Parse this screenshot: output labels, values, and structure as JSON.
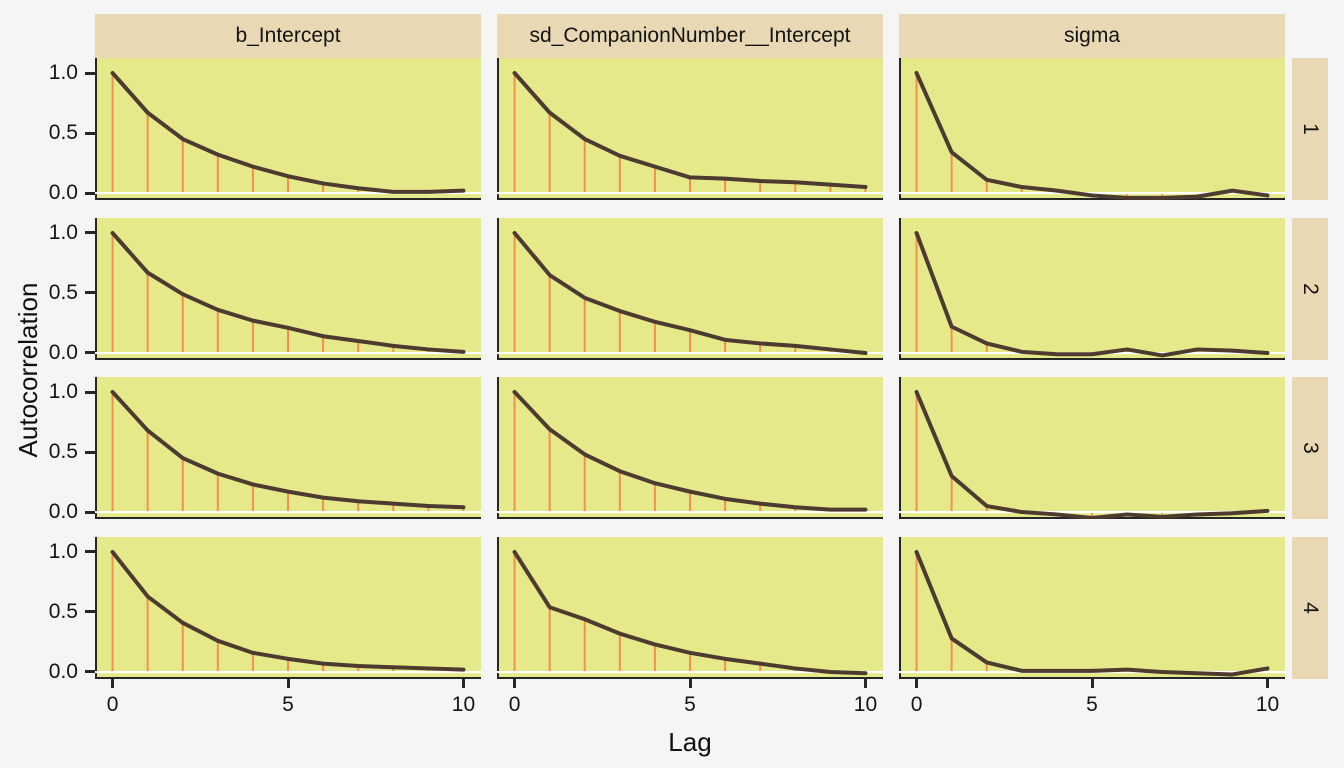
{
  "colors": {
    "figure_bg": "#f5f5f5",
    "panel_bg": "#e6e98a",
    "strip_bg": "#e8d9b4",
    "acf_line": "#4d3b30",
    "lag_segment": "#f2914d",
    "zero_line": "#ffffff",
    "axis": "#262626",
    "text": "#141414"
  },
  "chart_data": {
    "type": "line",
    "title": "",
    "xlabel": "Lag",
    "ylabel": "Autocorrelation",
    "facet_columns": [
      "b_Intercept",
      "sd_CompanionNumber__Intercept",
      "sigma"
    ],
    "facet_rows": [
      "1",
      "2",
      "3",
      "4"
    ],
    "x": [
      0,
      1,
      2,
      3,
      4,
      5,
      6,
      7,
      8,
      9,
      10
    ],
    "x_ticks": [
      0,
      5,
      10
    ],
    "x_tick_labels": [
      "0",
      "5",
      "10"
    ],
    "y_ticks": [
      1.0,
      0.5,
      0.0
    ],
    "y_tick_labels": [
      "1.0",
      "0.5",
      "0.0"
    ],
    "xlim": [
      -0.5,
      10.5
    ],
    "ylim": [
      -0.058,
      1.125
    ],
    "grid": "off",
    "legend": "none",
    "zero_reference_line": 0,
    "series": [
      {
        "param": "b_Intercept",
        "chain": "1",
        "values": [
          1,
          0.67,
          0.45,
          0.32,
          0.22,
          0.14,
          0.08,
          0.04,
          0.01,
          0.01,
          0.02
        ]
      },
      {
        "param": "b_Intercept",
        "chain": "2",
        "values": [
          1,
          0.67,
          0.49,
          0.36,
          0.27,
          0.21,
          0.14,
          0.1,
          0.06,
          0.03,
          0.01
        ]
      },
      {
        "param": "b_Intercept",
        "chain": "3",
        "values": [
          1,
          0.68,
          0.45,
          0.32,
          0.23,
          0.17,
          0.12,
          0.09,
          0.07,
          0.05,
          0.04
        ]
      },
      {
        "param": "b_Intercept",
        "chain": "4",
        "values": [
          1,
          0.63,
          0.41,
          0.26,
          0.16,
          0.11,
          0.07,
          0.05,
          0.04,
          0.03,
          0.02
        ]
      },
      {
        "param": "sd_CompanionNumber__Intercept",
        "chain": "1",
        "values": [
          1,
          0.67,
          0.45,
          0.31,
          0.22,
          0.13,
          0.12,
          0.1,
          0.09,
          0.07,
          0.05
        ]
      },
      {
        "param": "sd_CompanionNumber__Intercept",
        "chain": "2",
        "values": [
          1,
          0.65,
          0.46,
          0.35,
          0.26,
          0.19,
          0.11,
          0.08,
          0.06,
          0.03,
          0
        ]
      },
      {
        "param": "sd_CompanionNumber__Intercept",
        "chain": "3",
        "values": [
          1,
          0.69,
          0.48,
          0.34,
          0.24,
          0.17,
          0.11,
          0.07,
          0.04,
          0.02,
          0.02
        ]
      },
      {
        "param": "sd_CompanionNumber__Intercept",
        "chain": "4",
        "values": [
          1,
          0.54,
          0.44,
          0.32,
          0.23,
          0.16,
          0.11,
          0.07,
          0.03,
          0,
          -0.01
        ]
      },
      {
        "param": "sigma",
        "chain": "1",
        "values": [
          1,
          0.34,
          0.11,
          0.05,
          0.02,
          -0.02,
          -0.04,
          -0.04,
          -0.03,
          0.02,
          -0.02
        ]
      },
      {
        "param": "sigma",
        "chain": "2",
        "values": [
          1,
          0.22,
          0.08,
          0.01,
          -0.01,
          -0.01,
          0.03,
          -0.02,
          0.03,
          0.02,
          0
        ]
      },
      {
        "param": "sigma",
        "chain": "3",
        "values": [
          1,
          0.3,
          0.05,
          0,
          -0.02,
          -0.05,
          -0.02,
          -0.04,
          -0.02,
          -0.01,
          0.01
        ]
      },
      {
        "param": "sigma",
        "chain": "4",
        "values": [
          1,
          0.28,
          0.08,
          0.01,
          0.01,
          0.01,
          0.02,
          0,
          -0.01,
          -0.02,
          0.03
        ]
      }
    ]
  }
}
